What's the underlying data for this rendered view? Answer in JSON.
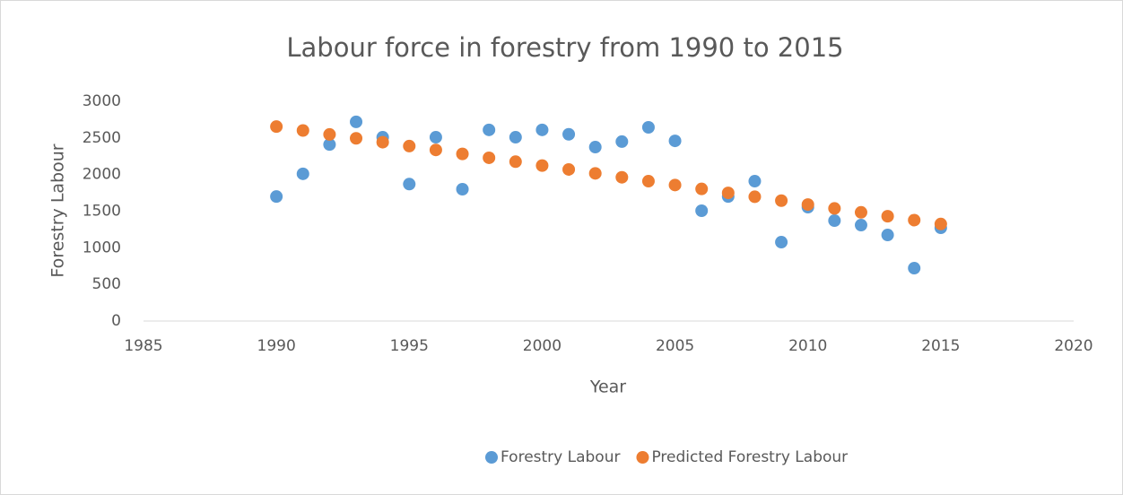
{
  "chart_data": {
    "type": "scatter",
    "title": "Labour force in forestry from 1990 to 2015",
    "x_label": "Year",
    "y_label": "Forestry Labour",
    "x": [
      1990,
      1991,
      1992,
      1993,
      1994,
      1995,
      1996,
      1997,
      1998,
      1999,
      2000,
      2001,
      2002,
      2003,
      2004,
      2005,
      2006,
      2007,
      2008,
      2009,
      2010,
      2011,
      2012,
      2013,
      2014,
      2015
    ],
    "series": [
      {
        "name": "Forestry Labour",
        "color": "#5b9bd5",
        "values": [
          1700,
          2010,
          2410,
          2720,
          2510,
          1870,
          2510,
          1800,
          2610,
          2510,
          2610,
          2550,
          2375,
          2450,
          2645,
          2460,
          1506,
          1700,
          1910,
          1077,
          1555,
          1371,
          1310,
          1175,
          722,
          1273
        ]
      },
      {
        "name": "Predicted Forestry Labour",
        "color": "#ed7d31",
        "values": [
          2655,
          2602,
          2548,
          2495,
          2442,
          2389,
          2336,
          2282,
          2229,
          2176,
          2123,
          2070,
          2016,
          1963,
          1910,
          1857,
          1804,
          1750,
          1697,
          1644,
          1591,
          1538,
          1484,
          1431,
          1378,
          1325
        ]
      }
    ],
    "xlim": [
      1985,
      2020
    ],
    "xticks": [
      1985,
      1990,
      1995,
      2000,
      2005,
      2010,
      2015,
      2020
    ],
    "ylim": [
      0,
      3000
    ],
    "yticks": [
      0,
      500,
      1000,
      1500,
      2000,
      2500,
      3000
    ],
    "grid": false,
    "legend": "bottom"
  }
}
